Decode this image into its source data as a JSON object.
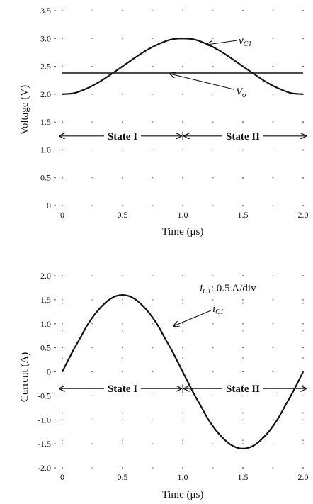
{
  "chart_data": [
    {
      "type": "line",
      "xlabel": "Time  (μs)",
      "ylabel": "Voltage (V)",
      "xlim": [
        0,
        2.0
      ],
      "ylim": [
        0,
        3.5
      ],
      "x_ticks": [
        "0",
        "0.5",
        "1.0",
        "1.5",
        "2.0"
      ],
      "y_ticks": [
        "0",
        "0.5",
        "1.0",
        "1.5",
        "2.0",
        "2.5",
        "3.0",
        "3.5"
      ],
      "grid": "dotted",
      "series": [
        {
          "name": "vC1",
          "x": [
            0,
            0.1,
            0.2,
            0.3,
            0.4,
            0.5,
            0.6,
            0.7,
            0.8,
            0.9,
            1.0,
            1.1,
            1.2,
            1.3,
            1.4,
            1.5,
            1.6,
            1.7,
            1.8,
            1.9,
            2.0
          ],
          "y": [
            2.0,
            2.02,
            2.1,
            2.21,
            2.35,
            2.5,
            2.65,
            2.79,
            2.9,
            2.98,
            3.0,
            2.98,
            2.9,
            2.79,
            2.65,
            2.5,
            2.35,
            2.21,
            2.1,
            2.02,
            2.0
          ]
        },
        {
          "name": "Vo",
          "x": [
            0,
            2.0
          ],
          "y": [
            2.38,
            2.38
          ]
        }
      ],
      "annotations": {
        "vC1_main": "v",
        "vC1_sub": "C1",
        "vo_main": "V",
        "vo_sub": "o"
      },
      "states": [
        {
          "label": "State I",
          "from": 0,
          "to": 1.0
        },
        {
          "label": "State II",
          "from": 1.0,
          "to": 2.0
        }
      ],
      "state_y": 1.25
    },
    {
      "type": "line",
      "xlabel": "Time  (μs)",
      "ylabel": "Current (A)",
      "xlim": [
        0,
        2.0
      ],
      "ylim": [
        -2.0,
        2.0
      ],
      "x_ticks": [
        "0",
        "0.5",
        "1.0",
        "1.5",
        "2.0"
      ],
      "y_ticks": [
        "-2.0",
        "-1.5",
        "-1.0",
        "-0.5",
        "0",
        "0.5",
        "1.0",
        "1.5",
        "2.0"
      ],
      "grid": "dotted",
      "series": [
        {
          "name": "iC1",
          "x": [
            0,
            0.05,
            0.1,
            0.15,
            0.2,
            0.25,
            0.3,
            0.35,
            0.4,
            0.45,
            0.5,
            0.55,
            0.6,
            0.65,
            0.7,
            0.75,
            0.8,
            0.85,
            0.9,
            0.95,
            1.0,
            1.05,
            1.1,
            1.15,
            1.2,
            1.25,
            1.3,
            1.35,
            1.4,
            1.45,
            1.5,
            1.55,
            1.6,
            1.65,
            1.7,
            1.75,
            1.8,
            1.85,
            1.9,
            1.95,
            2.0
          ],
          "y": [
            0,
            0.25,
            0.49,
            0.71,
            0.94,
            1.13,
            1.29,
            1.42,
            1.52,
            1.58,
            1.6,
            1.58,
            1.52,
            1.42,
            1.29,
            1.13,
            0.94,
            0.71,
            0.49,
            0.25,
            0,
            -0.25,
            -0.49,
            -0.71,
            -0.94,
            -1.13,
            -1.29,
            -1.42,
            -1.52,
            -1.58,
            -1.6,
            -1.58,
            -1.52,
            -1.42,
            -1.29,
            -1.13,
            -0.94,
            -0.71,
            -0.49,
            -0.25,
            0
          ]
        }
      ],
      "annotations": {
        "scale_main": "i",
        "scale_sub": "C1",
        "scale_rest": ": 0.5 A/div",
        "iC1_main": "i",
        "iC1_sub": "C1"
      },
      "states": [
        {
          "label": "State I",
          "from": 0,
          "to": 1.0
        },
        {
          "label": "State II",
          "from": 1.0,
          "to": 2.0
        }
      ],
      "state_y": -0.35
    }
  ]
}
